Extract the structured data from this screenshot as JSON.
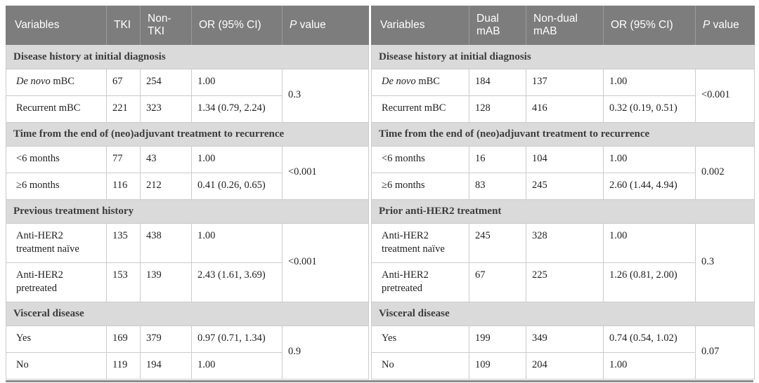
{
  "colors": {
    "header_background": "#7d7d7d",
    "header_divider": "#9b9b9b",
    "section_band_background": "#dadada",
    "section_band_text": "#3c3c3c",
    "cell_border": "#cbcbcb",
    "bottom_frame": "#8d8d8d",
    "data_text": "#1f1f1f",
    "header_text": "#ffffff"
  },
  "tables": [
    {
      "columns": [
        {
          "text": "Variables"
        },
        {
          "text": "TKI"
        },
        {
          "text": "Non-TKI"
        },
        {
          "text": "OR (95% CI)"
        },
        {
          "text": "P value",
          "italic": "P"
        }
      ],
      "sections": [
        {
          "title": "Disease history at initial diagnosis",
          "p": "0.3",
          "tall": false,
          "rows": [
            {
              "label": "De novo mBC",
              "italic": "De novo",
              "v1": "67",
              "v2": "254",
              "or": "1.00"
            },
            {
              "label": "Recurrent mBC",
              "v1": "221",
              "v2": "323",
              "or": "1.34 (0.79, 2.24)"
            }
          ]
        },
        {
          "title": "Time from the end of (neo)adjuvant treatment to recurrence",
          "p": "<0.001",
          "tall": false,
          "rows": [
            {
              "label": "<6 months",
              "v1": "77",
              "v2": "43",
              "or": "1.00"
            },
            {
              "label": "≥6 months",
              "v1": "116",
              "v2": "212",
              "or": "0.41 (0.26, 0.65)"
            }
          ]
        },
        {
          "title": "Previous treatment history",
          "p": "<0.001",
          "tall": true,
          "rows": [
            {
              "label": "Anti-HER2 treatment naïve",
              "v1": "135",
              "v2": "438",
              "or": "1.00"
            },
            {
              "label": "Anti-HER2 pretreated",
              "v1": "153",
              "v2": "139",
              "or": "2.43 (1.61, 3.69)"
            }
          ]
        },
        {
          "title": "Visceral disease",
          "p": "0.9",
          "tall": false,
          "rows": [
            {
              "label": "Yes",
              "v1": "169",
              "v2": "379",
              "or": "0.97 (0.71, 1.34)"
            },
            {
              "label": "No",
              "v1": "119",
              "v2": "194",
              "or": "1.00"
            }
          ]
        }
      ]
    },
    {
      "columns": [
        {
          "text": "Variables"
        },
        {
          "text": "Dual mAB"
        },
        {
          "text": "Non-dual mAB"
        },
        {
          "text": "OR (95% CI)"
        },
        {
          "text": "P value",
          "italic": "P"
        }
      ],
      "sections": [
        {
          "title": "Disease history at initial diagnosis",
          "p": "<0.001",
          "tall": false,
          "rows": [
            {
              "label": "De novo mBC",
              "italic": "De novo",
              "v1": "184",
              "v2": "137",
              "or": "1.00"
            },
            {
              "label": "Recurrent mBC",
              "v1": "128",
              "v2": "416",
              "or": "0.32 (0.19, 0.51)"
            }
          ]
        },
        {
          "title": "Time from the end of (neo)adjuvant treatment to recurrence",
          "p": "0.002",
          "tall": false,
          "rows": [
            {
              "label": "<6 months",
              "v1": "16",
              "v2": "104",
              "or": "1.00"
            },
            {
              "label": "≥6 months",
              "v1": "83",
              "v2": "245",
              "or": "2.60 (1.44, 4.94)"
            }
          ]
        },
        {
          "title": "Prior anti-HER2 treatment",
          "p": "0.3",
          "tall": true,
          "rows": [
            {
              "label": "Anti-HER2 treatment naïve",
              "v1": "245",
              "v2": "328",
              "or": "1.00"
            },
            {
              "label": "Anti-HER2 pretreated",
              "v1": "67",
              "v2": "225",
              "or": "1.26 (0.81, 2.00)"
            }
          ]
        },
        {
          "title": "Visceral disease",
          "p": "0.07",
          "tall": false,
          "rows": [
            {
              "label": "Yes",
              "v1": "199",
              "v2": "349",
              "or": "0.74 (0.54, 1.02)"
            },
            {
              "label": "No",
              "v1": "109",
              "v2": "204",
              "or": "1.00"
            }
          ]
        }
      ]
    }
  ]
}
